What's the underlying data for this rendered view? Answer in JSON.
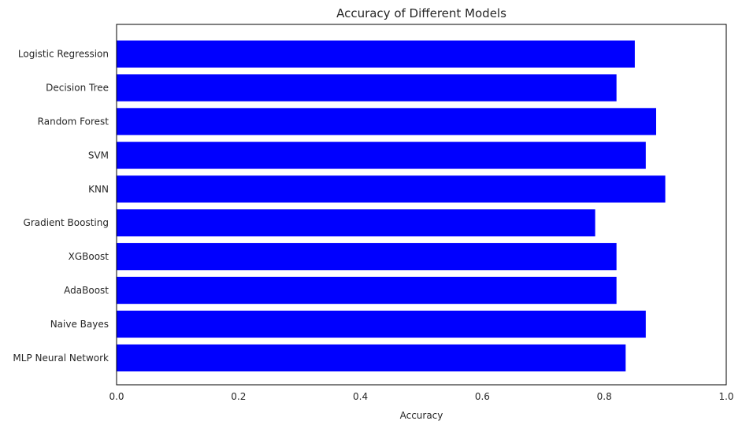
{
  "chart_data": {
    "type": "bar",
    "orientation": "horizontal",
    "title": "Accuracy of Different Models",
    "xlabel": "Accuracy",
    "ylabel": "",
    "xlim": [
      0,
      1.0
    ],
    "xticks": [
      "0.0",
      "0.2",
      "0.4",
      "0.6",
      "0.8",
      "1.0"
    ],
    "grid": false,
    "bar_color": "#0000ff",
    "categories": [
      "Logistic Regression",
      "Decision Tree",
      "Random Forest",
      "SVM",
      "KNN",
      "Gradient Boosting",
      "XGBoost",
      "AdaBoost",
      "Naive Bayes",
      "MLP Neural Network"
    ],
    "values": [
      0.85,
      0.82,
      0.885,
      0.868,
      0.9,
      0.785,
      0.82,
      0.82,
      0.868,
      0.835
    ]
  }
}
